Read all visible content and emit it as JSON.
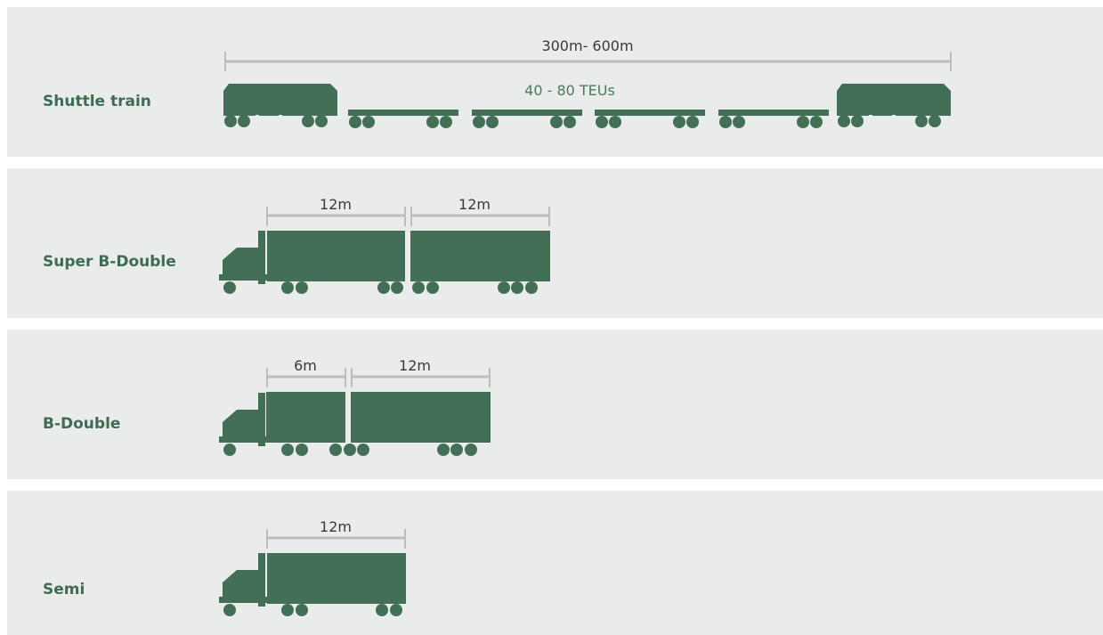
{
  "colors": {
    "panel_bg": "#e9eceb",
    "vehicle_green": "#446f57",
    "dimension_line": "#bdbdbd",
    "label_text": "#3f6b52"
  },
  "rows": [
    {
      "id": "shuttle",
      "label": "Shuttle train",
      "length_label": "300m- 600m",
      "capacity_label": "40 - 80 TEUs",
      "flat_wagons": 4,
      "locomotives": 2
    },
    {
      "id": "super-b-double",
      "label": "Super B-Double",
      "segments": [
        "12m",
        "12m"
      ]
    },
    {
      "id": "b-double",
      "label": "B-Double",
      "segments": [
        "6m",
        "12m"
      ]
    },
    {
      "id": "semi",
      "label": "Semi",
      "segments": [
        "12m"
      ]
    }
  ]
}
